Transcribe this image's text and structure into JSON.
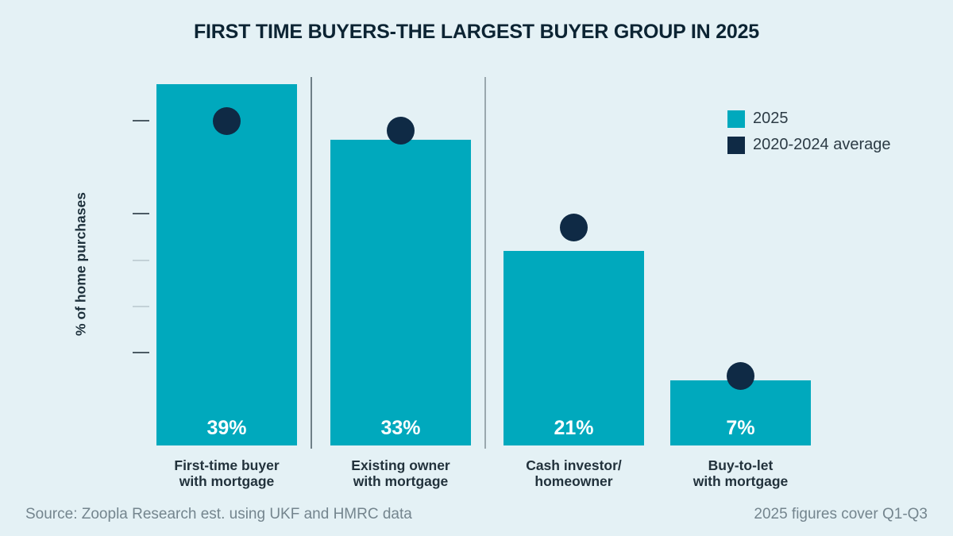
{
  "title": "FIRST TIME BUYERS-THE LARGEST BUYER GROUP IN 2025",
  "chart_data": {
    "type": "bar",
    "title": "FIRST TIME BUYERS-THE LARGEST BUYER GROUP IN 2025",
    "categories": [
      {
        "line1": "First-time buyer",
        "line2": "with mortgage"
      },
      {
        "line1": "Existing owner",
        "line2": "with mortgage"
      },
      {
        "line1": "Cash investor/",
        "line2": "homeowner"
      },
      {
        "line1": "Buy-to-let",
        "line2": "with mortgage"
      }
    ],
    "series": [
      {
        "name": "2025",
        "type": "bar",
        "color": "#00A9BD",
        "values": [
          39,
          33,
          21,
          7
        ],
        "value_labels": [
          "39%",
          "33%",
          "21%",
          "7%"
        ]
      },
      {
        "name": "2020-2024 average",
        "type": "dot",
        "color": "#0F2A45",
        "values": [
          35,
          34,
          23.5,
          7.5
        ]
      }
    ],
    "xlabel": "",
    "ylabel": "% of home purchases",
    "ylim": [
      0,
      40
    ],
    "yticks": [
      {
        "label": "0%",
        "value": 0,
        "dash": "none"
      },
      {
        "label": "5%",
        "value": 5,
        "dash": "none"
      },
      {
        "label": "10%",
        "value": 10,
        "dash": "dark"
      },
      {
        "label": "15%",
        "value": 15,
        "dash": "light"
      },
      {
        "label": "20%",
        "value": 20,
        "dash": "light"
      },
      {
        "label": "25%",
        "value": 25,
        "dash": "dark"
      },
      {
        "label": "30%",
        "value": 30,
        "dash": "none"
      },
      {
        "label": "35%",
        "value": 35,
        "dash": "dark"
      },
      {
        "label": "40%",
        "value": 40,
        "dash": "none"
      }
    ],
    "dividers_after_categories": [
      0,
      1
    ],
    "grid": false,
    "legend_position": "top-right",
    "value_labels_inside_bars": true
  },
  "footer": {
    "source": "Source: Zoopla Research est. using UKF and HMRC data",
    "note": "2025 figures cover Q1-Q3"
  },
  "colors": {
    "background": "#E4F1F5",
    "bar": "#00A9BD",
    "dot": "#0F2A45",
    "title_text": "#0C2433",
    "axis_text": "#26343E",
    "footer_text": "#74858E",
    "tick_dash_dark": "#4C5B64",
    "tick_dash_light": "#C3D1D7",
    "divider_dark": "#6F7F87",
    "divider_light": "#9AA8AE"
  }
}
